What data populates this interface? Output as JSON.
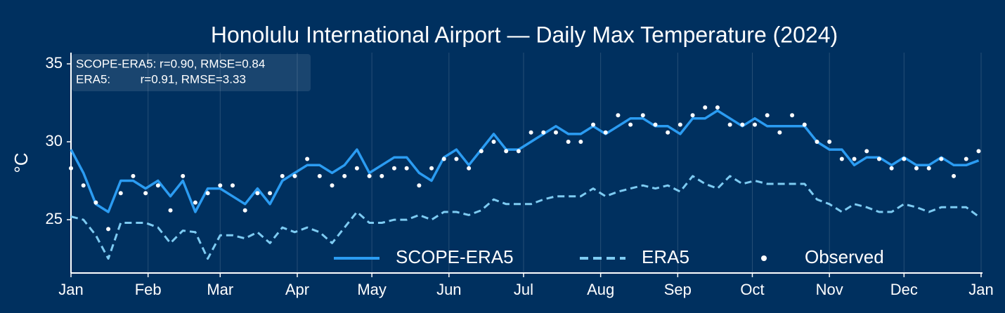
{
  "chart_data": {
    "type": "line",
    "title": "Honolulu International Airport — Daily Max Temperature (2024)",
    "ylabel": "°C",
    "annotations": [
      "SCOPE-ERA5: r=0.90, RMSE=0.84",
      "ERA5:         r=0.91, RMSE=3.33"
    ],
    "x": [
      0,
      5,
      10,
      15,
      20,
      25,
      30,
      35,
      40,
      45,
      50,
      55,
      60,
      65,
      70,
      75,
      80,
      85,
      90,
      95,
      100,
      105,
      110,
      115,
      120,
      125,
      130,
      135,
      140,
      145,
      150,
      155,
      160,
      165,
      170,
      175,
      180,
      185,
      190,
      195,
      200,
      205,
      210,
      215,
      220,
      225,
      230,
      235,
      240,
      245,
      250,
      255,
      260,
      265,
      270,
      275,
      280,
      285,
      290,
      295,
      300,
      305,
      310,
      315,
      320,
      325,
      330,
      335,
      340,
      345,
      350,
      355,
      360,
      365
    ],
    "series": [
      {
        "name": "SCOPE-ERA5",
        "color": "#2b9cf2",
        "style": "solid",
        "values": [
          29.5,
          28,
          26,
          25.5,
          27.5,
          27.5,
          27,
          27.5,
          26.5,
          27.5,
          25.5,
          27,
          27,
          26.5,
          26,
          27,
          26,
          27.5,
          28,
          28.5,
          28.5,
          28,
          28.5,
          29.5,
          28,
          28.5,
          29,
          29,
          28,
          27.5,
          29,
          29.5,
          28.5,
          29.5,
          30.5,
          29.5,
          29.5,
          30,
          30.5,
          31,
          30.5,
          30.5,
          31,
          30.5,
          31,
          31.5,
          31.5,
          31,
          31,
          30.5,
          31.5,
          31.5,
          32,
          31.5,
          31,
          31.5,
          31,
          31,
          31,
          31,
          30,
          29.5,
          29.5,
          28.5,
          29,
          29,
          28.5,
          29,
          28.5,
          28.5,
          29,
          28.5,
          28.5,
          28.8
        ]
      },
      {
        "name": "ERA5",
        "color": "#7dcbf2",
        "style": "dashed",
        "values": [
          25.2,
          25,
          24,
          22.5,
          24.8,
          24.8,
          24.8,
          24.5,
          23.5,
          24.3,
          24.2,
          22.5,
          24,
          24,
          23.8,
          24.2,
          23.5,
          24.5,
          24.2,
          24.5,
          24.2,
          23.5,
          24.5,
          25.5,
          24.8,
          24.8,
          25,
          25,
          25.3,
          25,
          25.5,
          25.5,
          25.3,
          25.6,
          26.3,
          26,
          26,
          26,
          26.3,
          26.5,
          26.5,
          26.5,
          27,
          26.5,
          26.8,
          27,
          27.2,
          27,
          27.2,
          26.8,
          27.8,
          27.3,
          27,
          27.8,
          27.3,
          27.5,
          27.3,
          27.3,
          27.3,
          27.3,
          26.3,
          26,
          25.5,
          26,
          25.8,
          25.5,
          25.5,
          26,
          25.8,
          25.5,
          25.8,
          25.8,
          25.8,
          25.2
        ]
      },
      {
        "name": "Observed",
        "color": "#ffffff",
        "style": "points",
        "values": [
          28.3,
          27.2,
          26.1,
          24.4,
          26.7,
          27.8,
          26.7,
          27.2,
          25.6,
          27.8,
          26.1,
          26.7,
          27.2,
          27.2,
          25.6,
          26.7,
          26.7,
          27.8,
          27.8,
          28.9,
          27.8,
          27.2,
          27.8,
          28.3,
          27.8,
          27.8,
          28.3,
          28.3,
          27.2,
          28.3,
          28.9,
          28.9,
          28.3,
          29.4,
          30,
          29.4,
          29.4,
          30.6,
          30.6,
          30.6,
          30,
          30,
          31.1,
          30.6,
          31.7,
          31.1,
          31.7,
          31.1,
          30.6,
          31.1,
          31.7,
          32.2,
          32.2,
          31.1,
          31.1,
          31.1,
          31.7,
          30.6,
          31.7,
          31.1,
          30,
          30,
          28.9,
          28.9,
          29.4,
          28.9,
          28.3,
          28.9,
          28.3,
          28.3,
          28.9,
          27.8,
          28.9,
          29.4
        ]
      }
    ],
    "xlim": [
      0,
      366
    ],
    "xticks": [
      {
        "value": 0,
        "label": "Jan"
      },
      {
        "value": 31,
        "label": "Feb"
      },
      {
        "value": 60,
        "label": "Mar"
      },
      {
        "value": 91,
        "label": "Apr"
      },
      {
        "value": 121,
        "label": "May"
      },
      {
        "value": 152,
        "label": "Jun"
      },
      {
        "value": 182,
        "label": "Jul"
      },
      {
        "value": 213,
        "label": "Aug"
      },
      {
        "value": 244,
        "label": "Sep"
      },
      {
        "value": 274,
        "label": "Oct"
      },
      {
        "value": 305,
        "label": "Nov"
      },
      {
        "value": 335,
        "label": "Dec"
      },
      {
        "value": 366,
        "label": "Jan"
      }
    ],
    "ylim": [
      21.58,
      35.72
    ],
    "yticks": [
      25,
      30,
      35
    ],
    "grid": "x",
    "legend": "lower center"
  }
}
